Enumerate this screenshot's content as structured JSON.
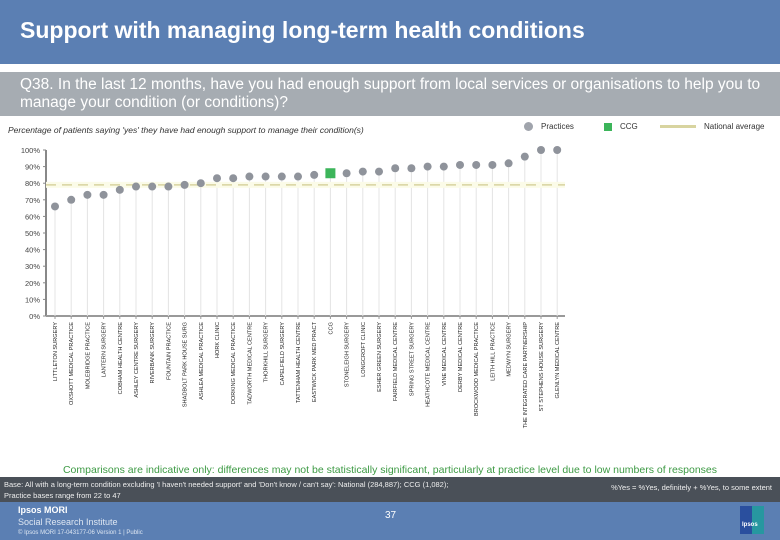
{
  "header": {
    "title": "Support with managing long-term health conditions",
    "question": "Q38. In the last 12 months, have you had enough support from local services or organisations to help you to manage your condition (or conditions)?"
  },
  "legend": {
    "practices": "Practices",
    "ccg": "CCG",
    "national": "National average"
  },
  "chart_data": {
    "type": "scatter",
    "title": "Percentage of patients saying 'yes' they have had enough support to manage their condition(s)",
    "ylabel": "",
    "xlabel": "",
    "ylim": [
      0,
      100
    ],
    "yticks": [
      "0%",
      "10%",
      "20%",
      "30%",
      "40%",
      "50%",
      "60%",
      "70%",
      "80%",
      "90%",
      "100%"
    ],
    "grid": false,
    "legend_position": "top-right",
    "national_average": 79,
    "colors": {
      "practice": "#8f939b",
      "ccg": "#3cb55a",
      "national": "#d8d4a0"
    },
    "categories": [
      "LITTLETON SURGERY",
      "OXSHOTT MEDICAL PRACTICE",
      "MOLEBRIDGE PRACTICE",
      "LANTERN SURGERY",
      "COBHAM HEALTH CENTRE",
      "ASHLEY CENTRE SURGERY",
      "RIVERBANK SURGERY",
      "FOUNTAIN PRACTICE",
      "SHADBOLT PARK HOUSE SURG",
      "ASHLEA MEDICAL PRACTICE",
      "HORK CLINIC",
      "DORKING MEDICAL PRACTICE",
      "TADWORTH MEDICAL CENTRE",
      "THORKHILL SURGERY",
      "CAPELFIELD SURGERY",
      "TATTENHAM HEALTH CENTRE",
      "EASTWICK PARK MED PRACT",
      "CCG",
      "STONELEIGH SURGERY",
      "LONGCROFT CLINIC",
      "ESHER GREEN SURGERY",
      "FAIRFIELD MEDICAL CENTRE",
      "SPRING STREET SURGERY",
      "HEATHCOTE MEDICAL CENTRE",
      "VINE MEDICAL CENTRE",
      "DERBY MEDICAL CENTRE",
      "BROCKWOOD MEDICAL PRACTICE",
      "LEITH HILL PRACTICE",
      "MEDWYN SURGERY",
      "THE INTEGRATED CARE PARTNERSHIP",
      "ST STEPHENS HOUSE SURGERY",
      "GLENLYN MEDICAL CENTRE"
    ],
    "values": [
      66,
      70,
      73,
      73,
      76,
      78,
      78,
      78,
      79,
      80,
      83,
      83,
      84,
      84,
      84,
      84,
      85,
      86,
      86,
      87,
      87,
      89,
      89,
      90,
      90,
      91,
      91,
      91,
      92,
      96,
      100,
      100
    ],
    "kinds": [
      "p",
      "p",
      "p",
      "p",
      "p",
      "p",
      "p",
      "p",
      "p",
      "p",
      "p",
      "p",
      "p",
      "p",
      "p",
      "p",
      "p",
      "c",
      "p",
      "p",
      "p",
      "p",
      "p",
      "p",
      "p",
      "p",
      "p",
      "p",
      "p",
      "p",
      "p",
      "p"
    ]
  },
  "footer": {
    "note": "Comparisons are indicative only: differences may not be statistically significant, particularly at practice level due to low numbers of responses",
    "base": "Base: All with a long-term condition excluding 'I haven't needed support' and 'Don't know / can't say': National (284,887); CCG (1,082);",
    "base2": "Practice bases range from 22 to 47",
    "yes_definition": "%Yes = %Yes, definitely + %Yes, to some extent",
    "brand1": "Ipsos MORI",
    "brand2": "Social Research Institute",
    "copyright": "© Ipsos MORI     17-043177-06 Version 1 | Public",
    "page": "37",
    "logo_text": "Ipsos"
  }
}
